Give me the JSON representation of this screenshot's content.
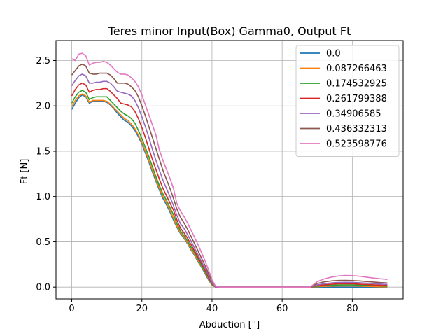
{
  "chart_data": {
    "type": "line",
    "title": "Teres minor Input(Box) Gamma0, Output Ft",
    "xlabel": "Abduction [°]",
    "ylabel": "Ft [N]",
    "xlim": [
      -4.5,
      94.5
    ],
    "ylim": [
      -0.13,
      2.72
    ],
    "xticks": [
      0,
      20,
      40,
      60,
      80
    ],
    "xtick_labels": [
      "0",
      "20",
      "40",
      "60",
      "80"
    ],
    "yticks": [
      0.0,
      0.5,
      1.0,
      1.5,
      2.0,
      2.5
    ],
    "ytick_labels": [
      "0.0",
      "0.5",
      "1.0",
      "1.5",
      "2.0",
      "2.5"
    ],
    "grid": true,
    "legend_position": "upper-right",
    "x": [
      0,
      1,
      2,
      3,
      4,
      5,
      6,
      7,
      8,
      9,
      10,
      11,
      12,
      13,
      14,
      15,
      16,
      17,
      18,
      19,
      20,
      21,
      22,
      23,
      24,
      25,
      26,
      27,
      28,
      29,
      30,
      31,
      32,
      33,
      34,
      35,
      36,
      37,
      38,
      39,
      40,
      41,
      42,
      45,
      50,
      55,
      60,
      65,
      68,
      69,
      70,
      72,
      74,
      76,
      78,
      80,
      82,
      84,
      86,
      88,
      90
    ],
    "series": [
      {
        "name": "0.0",
        "color": "#1f77b4",
        "values": [
          1.96,
          2.03,
          2.09,
          2.12,
          2.1,
          2.03,
          2.05,
          2.05,
          2.05,
          2.05,
          2.04,
          2.01,
          1.97,
          1.92,
          1.88,
          1.84,
          1.82,
          1.78,
          1.73,
          1.66,
          1.58,
          1.48,
          1.38,
          1.27,
          1.17,
          1.07,
          0.98,
          0.91,
          0.83,
          0.74,
          0.66,
          0.59,
          0.54,
          0.48,
          0.41,
          0.35,
          0.28,
          0.22,
          0.15,
          0.08,
          0.02,
          0.0,
          0.0,
          0.0,
          0.0,
          0.0,
          0.0,
          0.0,
          0.0,
          0.0,
          0.0,
          0.0,
          0.0,
          0.0,
          0.0,
          0.0,
          0.0,
          0.0,
          0.0,
          0.0,
          0.0
        ]
      },
      {
        "name": "0.087266463",
        "color": "#ff7f0e",
        "values": [
          1.99,
          2.06,
          2.11,
          2.13,
          2.11,
          2.04,
          2.06,
          2.06,
          2.06,
          2.06,
          2.05,
          2.02,
          1.98,
          1.94,
          1.9,
          1.86,
          1.84,
          1.8,
          1.75,
          1.68,
          1.6,
          1.5,
          1.4,
          1.29,
          1.19,
          1.09,
          1.0,
          0.93,
          0.85,
          0.76,
          0.67,
          0.6,
          0.55,
          0.49,
          0.42,
          0.36,
          0.29,
          0.23,
          0.16,
          0.09,
          0.02,
          0.0,
          0.0,
          0.0,
          0.0,
          0.0,
          0.0,
          0.0,
          0.0,
          0.002,
          0.005,
          0.008,
          0.01,
          0.012,
          0.012,
          0.012,
          0.01,
          0.008,
          0.006,
          0.004,
          0.003
        ]
      },
      {
        "name": "0.174532925",
        "color": "#2ca02c",
        "values": [
          2.03,
          2.1,
          2.15,
          2.17,
          2.15,
          2.07,
          2.09,
          2.1,
          2.1,
          2.1,
          2.1,
          2.06,
          2.02,
          1.98,
          1.94,
          1.91,
          1.89,
          1.86,
          1.81,
          1.73,
          1.64,
          1.54,
          1.44,
          1.33,
          1.22,
          1.12,
          1.03,
          0.96,
          0.88,
          0.8,
          0.7,
          0.62,
          0.57,
          0.51,
          0.44,
          0.38,
          0.31,
          0.24,
          0.17,
          0.1,
          0.03,
          0.0,
          0.0,
          0.0,
          0.0,
          0.0,
          0.0,
          0.0,
          0.0,
          0.005,
          0.01,
          0.016,
          0.02,
          0.023,
          0.024,
          0.024,
          0.022,
          0.019,
          0.016,
          0.013,
          0.01
        ]
      },
      {
        "name": "0.261799388",
        "color": "#d62728",
        "values": [
          2.11,
          2.18,
          2.23,
          2.25,
          2.23,
          2.15,
          2.17,
          2.18,
          2.18,
          2.19,
          2.19,
          2.16,
          2.12,
          2.08,
          2.03,
          2.02,
          2.01,
          1.99,
          1.94,
          1.86,
          1.76,
          1.65,
          1.53,
          1.41,
          1.3,
          1.19,
          1.09,
          1.01,
          0.93,
          0.85,
          0.74,
          0.65,
          0.6,
          0.54,
          0.47,
          0.4,
          0.33,
          0.26,
          0.19,
          0.11,
          0.04,
          0.0,
          0.0,
          0.0,
          0.0,
          0.0,
          0.0,
          0.0,
          0.0,
          0.008,
          0.016,
          0.025,
          0.032,
          0.036,
          0.037,
          0.036,
          0.033,
          0.029,
          0.025,
          0.021,
          0.018
        ]
      },
      {
        "name": "0.34906585",
        "color": "#9467bd",
        "values": [
          2.22,
          2.28,
          2.33,
          2.35,
          2.33,
          2.25,
          2.25,
          2.26,
          2.26,
          2.27,
          2.27,
          2.25,
          2.21,
          2.16,
          2.15,
          2.14,
          2.13,
          2.11,
          2.06,
          1.98,
          1.88,
          1.77,
          1.65,
          1.52,
          1.4,
          1.29,
          1.18,
          1.09,
          1.0,
          0.9,
          0.79,
          0.7,
          0.65,
          0.58,
          0.51,
          0.43,
          0.36,
          0.28,
          0.21,
          0.13,
          0.05,
          0.0,
          0.0,
          0.0,
          0.0,
          0.0,
          0.0,
          0.0,
          0.0,
          0.012,
          0.025,
          0.037,
          0.046,
          0.051,
          0.053,
          0.052,
          0.048,
          0.043,
          0.038,
          0.034,
          0.03
        ]
      },
      {
        "name": "0.436332313",
        "color": "#8c564b",
        "values": [
          2.34,
          2.39,
          2.44,
          2.46,
          2.44,
          2.36,
          2.35,
          2.35,
          2.36,
          2.36,
          2.36,
          2.34,
          2.3,
          2.25,
          2.25,
          2.25,
          2.24,
          2.21,
          2.17,
          2.1,
          2.0,
          1.89,
          1.77,
          1.65,
          1.53,
          1.41,
          1.29,
          1.19,
          1.09,
          0.98,
          0.86,
          0.77,
          0.71,
          0.64,
          0.56,
          0.48,
          0.4,
          0.32,
          0.24,
          0.15,
          0.07,
          0.01,
          0.0,
          0.0,
          0.0,
          0.0,
          0.0,
          0.0,
          0.0,
          0.02,
          0.04,
          0.058,
          0.068,
          0.073,
          0.074,
          0.072,
          0.068,
          0.062,
          0.056,
          0.05,
          0.045
        ]
      },
      {
        "name": "0.523598776",
        "color": "#e377c2",
        "values": [
          2.52,
          2.5,
          2.57,
          2.58,
          2.55,
          2.45,
          2.47,
          2.48,
          2.48,
          2.49,
          2.48,
          2.45,
          2.41,
          2.37,
          2.35,
          2.35,
          2.34,
          2.31,
          2.27,
          2.21,
          2.12,
          2.01,
          1.9,
          1.79,
          1.68,
          1.51,
          1.4,
          1.3,
          1.2,
          1.09,
          0.92,
          0.84,
          0.78,
          0.71,
          0.63,
          0.55,
          0.47,
          0.38,
          0.29,
          0.19,
          0.08,
          0.01,
          0.0,
          0.0,
          0.0,
          0.0,
          0.0,
          0.0,
          0.0,
          0.03,
          0.06,
          0.09,
          0.11,
          0.123,
          0.128,
          0.126,
          0.12,
          0.11,
          0.1,
          0.092,
          0.085
        ]
      }
    ]
  }
}
